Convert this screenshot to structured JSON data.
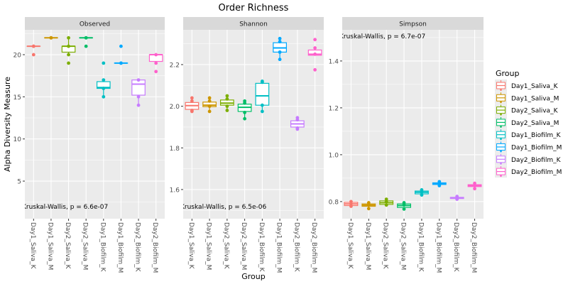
{
  "chart_data": {
    "type": "box",
    "title": "Order Richness",
    "xlabel": "Group",
    "ylabel": "Alpha Diversity Measure",
    "legend": {
      "title": "Group",
      "position": "right"
    },
    "categories": [
      "Day1_Saliva_K",
      "Day1_Saliva_M",
      "Day2_Saliva_K",
      "Day2_Saliva_M",
      "Day1_Biofilm_K",
      "Day1_Biofilm_M",
      "Day2_Biofilm_K",
      "Day2_Biofilm_M"
    ],
    "colors": [
      "#F8766D",
      "#CD9600",
      "#7CAE00",
      "#00BE67",
      "#00BFC4",
      "#00A9FF",
      "#C77CFF",
      "#FF61CC"
    ],
    "grid": true,
    "panels": [
      {
        "name": "Observed",
        "annotation": "Kruskal-Wallis, p = 6.6e-07",
        "annotation_pos": "bottom-left",
        "ylim": [
          0.54,
          22.95
        ],
        "yticks": [
          5,
          10,
          15,
          20
        ],
        "ytick_labels": [
          "5",
          "10",
          "15",
          "20"
        ],
        "boxes": [
          {
            "q1": 21,
            "median": 21,
            "q3": 21,
            "lo": 21,
            "hi": 21,
            "points": [
              21,
              21,
              20
            ]
          },
          {
            "q1": 22,
            "median": 22,
            "q3": 22,
            "lo": 22,
            "hi": 22,
            "points": [
              22,
              22,
              22
            ]
          },
          {
            "q1": 20.3,
            "median": 21,
            "q3": 21,
            "lo": 20,
            "hi": 22,
            "points": [
              22,
              21,
              20,
              19
            ]
          },
          {
            "q1": 22,
            "median": 22,
            "q3": 22,
            "lo": 22,
            "hi": 22,
            "points": [
              22,
              22,
              21
            ]
          },
          {
            "q1": 16,
            "median": 16.1,
            "q3": 16.8,
            "lo": 15,
            "hi": 17,
            "points": [
              19,
              17,
              16,
              15
            ]
          },
          {
            "q1": 19,
            "median": 19,
            "q3": 19,
            "lo": 19,
            "hi": 19,
            "points": [
              21,
              19,
              19
            ]
          },
          {
            "q1": 15.2,
            "median": 16.5,
            "q3": 17,
            "lo": 14,
            "hi": 17,
            "points": [
              17,
              15,
              14
            ]
          },
          {
            "q1": 19.2,
            "median": 20,
            "q3": 20,
            "lo": 19,
            "hi": 20,
            "points": [
              20,
              19,
              18
            ]
          }
        ]
      },
      {
        "name": "Shannon",
        "annotation": "Kruskal-Wallis, p = 6.5e-06",
        "annotation_pos": "bottom-left",
        "ylim": [
          1.46,
          2.367
        ],
        "yticks": [
          1.6,
          1.8,
          2.0,
          2.2
        ],
        "ytick_labels": [
          "1.6",
          "1.8",
          "2.0",
          "2.2"
        ],
        "boxes": [
          {
            "q1": 1.985,
            "median": 2.003,
            "q3": 2.018,
            "lo": 1.975,
            "hi": 2.04,
            "points": [
              2.04,
              2.025,
              1.98,
              1.975
            ]
          },
          {
            "q1": 1.998,
            "median": 2.005,
            "q3": 2.02,
            "lo": 1.975,
            "hi": 2.04,
            "points": [
              2.04,
              2.025,
              2.0,
              1.975
            ]
          },
          {
            "q1": 2.005,
            "median": 2.015,
            "q3": 2.03,
            "lo": 1.98,
            "hi": 2.05,
            "points": [
              2.05,
              2.035,
              2.0,
              1.98
            ]
          },
          {
            "q1": 1.975,
            "median": 1.995,
            "q3": 2.01,
            "lo": 1.94,
            "hi": 2.025,
            "points": [
              2.025,
              2.015,
              1.97,
              1.94
            ]
          },
          {
            "q1": 2.005,
            "median": 2.05,
            "q3": 2.11,
            "lo": 1.975,
            "hi": 2.12,
            "points": [
              2.12,
              2.115,
              2.005,
              1.975
            ]
          },
          {
            "q1": 2.26,
            "median": 2.28,
            "q3": 2.305,
            "lo": 2.225,
            "hi": 2.325,
            "points": [
              2.325,
              2.31,
              2.26,
              2.225
            ]
          },
          {
            "q1": 1.9,
            "median": 1.915,
            "q3": 1.93,
            "lo": 1.89,
            "hi": 1.945,
            "points": [
              1.945,
              1.935,
              1.895,
              1.89
            ]
          },
          {
            "q1": 2.245,
            "median": 2.25,
            "q3": 2.27,
            "lo": 2.245,
            "hi": 2.28,
            "points": [
              2.32,
              2.28,
              2.25,
              2.175
            ]
          }
        ]
      },
      {
        "name": "Simpson",
        "annotation": "Kruskal-Wallis, p = 6.7e-07",
        "annotation_pos": "top-left",
        "ylim": [
          0.727,
          1.533
        ],
        "yticks": [
          0.8,
          1.0,
          1.2,
          1.4
        ],
        "ytick_labels": [
          "0.8",
          "1.0",
          "1.2",
          "1.4"
        ],
        "boxes": [
          {
            "q1": 0.783,
            "median": 0.79,
            "q3": 0.797,
            "lo": 0.778,
            "hi": 0.8,
            "points": [
              0.8,
              0.79,
              0.78
            ]
          },
          {
            "q1": 0.78,
            "median": 0.785,
            "q3": 0.79,
            "lo": 0.77,
            "hi": 0.795,
            "points": [
              0.795,
              0.785,
              0.77
            ]
          },
          {
            "q1": 0.788,
            "median": 0.795,
            "q3": 0.803,
            "lo": 0.783,
            "hi": 0.81,
            "points": [
              0.81,
              0.8,
              0.785
            ]
          },
          {
            "q1": 0.775,
            "median": 0.783,
            "q3": 0.79,
            "lo": 0.768,
            "hi": 0.795,
            "points": [
              0.795,
              0.785,
              0.768
            ]
          },
          {
            "q1": 0.833,
            "median": 0.84,
            "q3": 0.845,
            "lo": 0.825,
            "hi": 0.85,
            "points": [
              0.85,
              0.84,
              0.828
            ]
          },
          {
            "q1": 0.873,
            "median": 0.876,
            "q3": 0.88,
            "lo": 0.865,
            "hi": 0.885,
            "points": [
              0.885,
              0.876,
              0.868
            ]
          },
          {
            "q1": 0.813,
            "median": 0.815,
            "q3": 0.818,
            "lo": 0.81,
            "hi": 0.822,
            "points": [
              0.822,
              0.815,
              0.81
            ]
          },
          {
            "q1": 0.864,
            "median": 0.868,
            "q3": 0.872,
            "lo": 0.855,
            "hi": 0.878,
            "points": [
              0.878,
              0.868,
              0.855
            ]
          }
        ]
      }
    ]
  }
}
